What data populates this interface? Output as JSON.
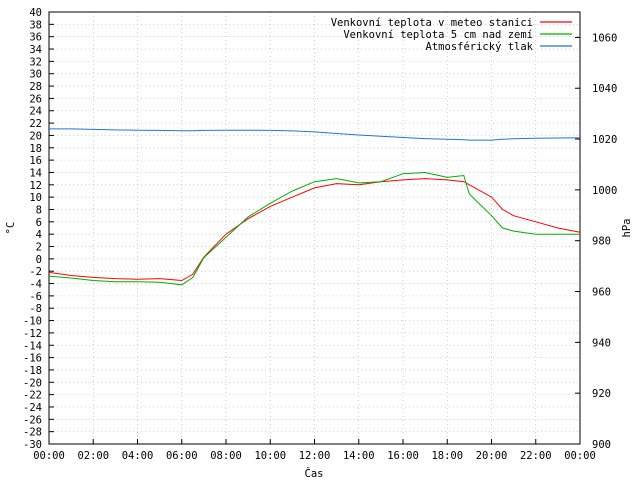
{
  "chart_data": {
    "type": "line",
    "xlabel": "Čas",
    "ylabel": "°C",
    "y2label": "hPa",
    "ylim": [
      -30,
      40
    ],
    "y2lim": [
      900,
      1070
    ],
    "grid": true,
    "legend_position": "top-right",
    "x_ticks": [
      "00:00",
      "02:00",
      "04:00",
      "06:00",
      "08:00",
      "10:00",
      "12:00",
      "14:00",
      "16:00",
      "18:00",
      "20:00",
      "22:00",
      "00:00"
    ],
    "y_ticks": [
      40,
      38,
      36,
      34,
      32,
      30,
      28,
      26,
      24,
      22,
      20,
      18,
      16,
      14,
      12,
      10,
      8,
      6,
      4,
      2,
      0,
      -2,
      -4,
      -6,
      -8,
      -10,
      -12,
      -14,
      -16,
      -18,
      -20,
      -22,
      -24,
      -26,
      -28,
      -30
    ],
    "y2_ticks": [
      1060,
      1040,
      1020,
      1000,
      980,
      960,
      940,
      920,
      900
    ],
    "x": [
      "00:00",
      "01:00",
      "02:00",
      "03:00",
      "04:00",
      "05:00",
      "06:00",
      "06:30",
      "07:00",
      "08:00",
      "09:00",
      "10:00",
      "11:00",
      "12:00",
      "13:00",
      "14:00",
      "15:00",
      "16:00",
      "17:00",
      "18:00",
      "18:45",
      "19:00",
      "20:00",
      "20:30",
      "21:00",
      "22:00",
      "23:00",
      "24:00"
    ],
    "series": [
      {
        "name": "Venkovní teplota v meteo stanici",
        "color": "#ff0000",
        "axis": "left",
        "values": [
          -2.2,
          -2.7,
          -3.0,
          -3.2,
          -3.3,
          -3.2,
          -3.5,
          -2.5,
          0.3,
          4.0,
          6.5,
          8.5,
          10.0,
          11.5,
          12.2,
          12.0,
          12.5,
          12.8,
          13.0,
          12.8,
          12.5,
          12.0,
          10.0,
          8.0,
          7.0,
          6.0,
          5.0,
          4.3
        ]
      },
      {
        "name": "Venkovní teplota 5 cm nad zemí",
        "color": "#00b000",
        "axis": "left",
        "values": [
          -2.8,
          -3.1,
          -3.5,
          -3.7,
          -3.7,
          -3.8,
          -4.2,
          -3.0,
          0.2,
          3.5,
          6.8,
          9.0,
          11.0,
          12.5,
          13.0,
          12.3,
          12.5,
          13.8,
          14.0,
          13.2,
          13.5,
          10.5,
          7.0,
          5.0,
          4.5,
          4.0,
          4.0,
          4.0
        ]
      },
      {
        "name": "Atmosférický tlak",
        "color": "#1f77d4",
        "axis": "right",
        "values": [
          1024,
          1024,
          1023.8,
          1023.6,
          1023.5,
          1023.4,
          1023.3,
          1023.3,
          1023.4,
          1023.5,
          1023.5,
          1023.4,
          1023.2,
          1022.8,
          1022.2,
          1021.6,
          1021.1,
          1020.6,
          1020.2,
          1019.9,
          1019.7,
          1019.6,
          1019.6,
          1019.9,
          1020.1,
          1020.3,
          1020.4,
          1020.5
        ]
      }
    ]
  }
}
